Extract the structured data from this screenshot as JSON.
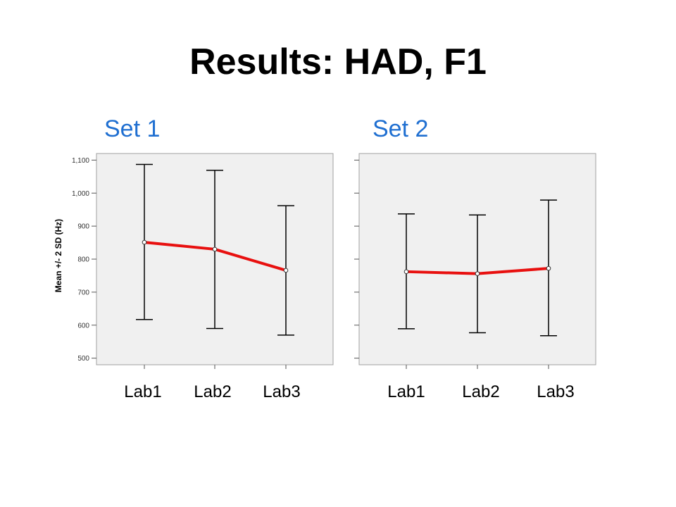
{
  "slide": {
    "title": "Results: HAD, F1"
  },
  "colors": {
    "panel_title": "#1f6fd1",
    "line": "#e8100f",
    "plot_bg": "#f0f0f0",
    "error_bar": "#000000"
  },
  "chart_data": [
    {
      "type": "line",
      "title": "Set 1",
      "categories": [
        "Lab1",
        "Lab2",
        "Lab3"
      ],
      "ylabel": "Mean +/- 2 SD (Hz)",
      "ylim": [
        480,
        1120
      ],
      "yticks": [
        500,
        600,
        700,
        800,
        900,
        1000,
        1100
      ],
      "ytick_labels": [
        "500",
        "600",
        "700",
        "800",
        "900",
        "1,000",
        "1,100"
      ],
      "show_ytick_labels": true,
      "grid": false,
      "series": [
        {
          "values": [
            851,
            830,
            766
          ],
          "lower": [
            617,
            590,
            570
          ],
          "upper": [
            1087,
            1069,
            962
          ]
        }
      ]
    },
    {
      "type": "line",
      "title": "Set 2",
      "categories": [
        "Lab1",
        "Lab2",
        "Lab3"
      ],
      "ylabel": "",
      "ylim": [
        480,
        1120
      ],
      "yticks": [
        500,
        600,
        700,
        800,
        900,
        1000,
        1100
      ],
      "ytick_labels": [],
      "show_ytick_labels": false,
      "grid": false,
      "series": [
        {
          "values": [
            762,
            756,
            772
          ],
          "lower": [
            589,
            577,
            568
          ],
          "upper": [
            937,
            934,
            979
          ]
        }
      ]
    }
  ]
}
